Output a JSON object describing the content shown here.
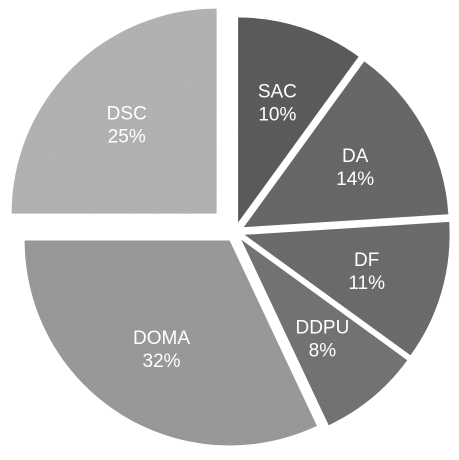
{
  "chart_data": {
    "type": "pie",
    "title": "",
    "start_angle_deg": 0,
    "direction": "clockwise",
    "exploded": true,
    "slices": [
      {
        "label": "SAC",
        "percent_label": "10%",
        "value": 10,
        "color": "#5e5e5e"
      },
      {
        "label": "DA",
        "percent_label": "14%",
        "value": 14,
        "color": "#6b6b6b"
      },
      {
        "label": "DF",
        "percent_label": "11%",
        "value": 11,
        "color": "#6f6f6f"
      },
      {
        "label": "DDPU",
        "percent_label": "8%",
        "value": 8,
        "color": "#777777"
      },
      {
        "label": "DOMA",
        "percent_label": "32%",
        "value": 32,
        "color": "#9e9e9e"
      },
      {
        "label": "DSC",
        "percent_label": "25%",
        "value": 25,
        "color": "#b8b8b8"
      }
    ]
  }
}
